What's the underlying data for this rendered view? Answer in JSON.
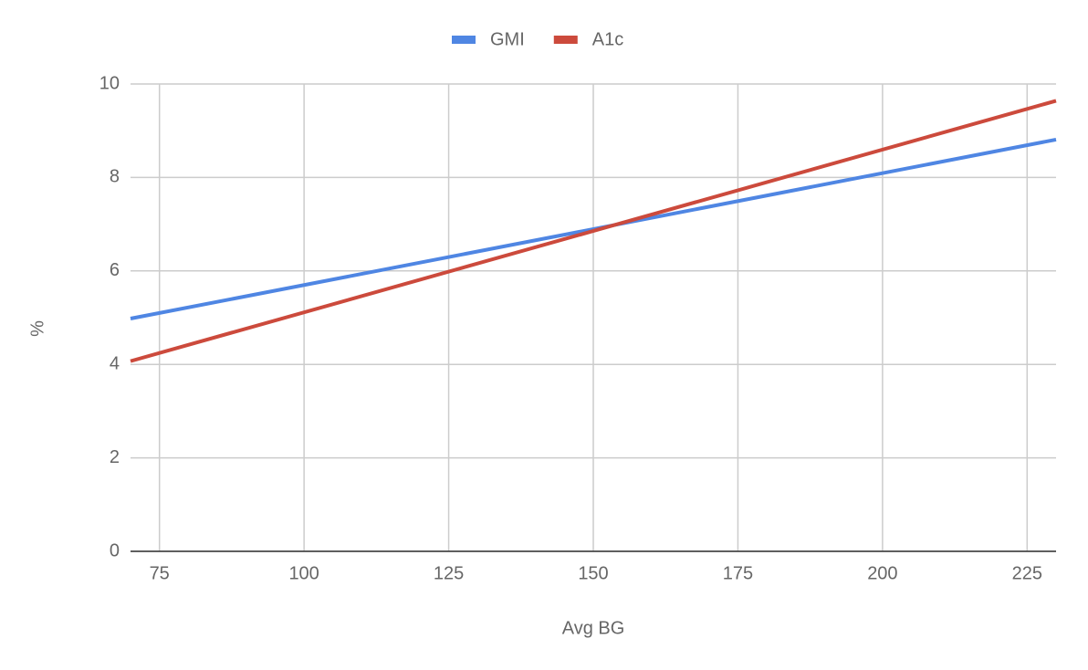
{
  "chart_data": {
    "type": "line",
    "x_label": "Avg BG",
    "y_label": "%",
    "x": [
      70,
      230
    ],
    "series": [
      {
        "name": "GMI",
        "color": "#4f86e3",
        "values": [
          4.98,
          8.81
        ]
      },
      {
        "name": "A1c",
        "color": "#cc4a3c",
        "values": [
          4.07,
          9.64
        ]
      }
    ],
    "xlim": [
      70,
      230
    ],
    "xticks": [
      75,
      100,
      125,
      150,
      175,
      200,
      225
    ],
    "ylim": [
      0,
      10
    ],
    "yticks": [
      0,
      2,
      4,
      6,
      8,
      10
    ],
    "grid": true,
    "legend": "top"
  }
}
